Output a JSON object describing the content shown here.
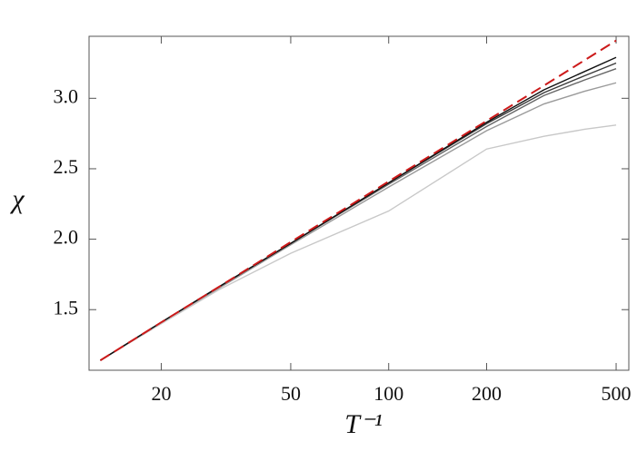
{
  "chart_data": {
    "type": "line",
    "xlabel": "T⁻¹",
    "ylabel": "χ",
    "x": [
      13,
      20,
      30,
      50,
      100,
      200,
      300,
      400,
      500
    ],
    "xscale": "log",
    "xlim": [
      12,
      547
    ],
    "xticks": [
      20,
      50,
      100,
      200,
      500
    ],
    "ylim": [
      1.07,
      3.44
    ],
    "yticks": [
      1.5,
      {
        "value": 2,
        "label": "2.0"
      },
      2.5,
      {
        "value": 3,
        "label": "3.0"
      }
    ],
    "series": [
      {
        "color": "#c8c8c8",
        "values": [
          1.14,
          1.4,
          1.64,
          1.9,
          2.2,
          2.64,
          2.73,
          2.78,
          2.81
        ]
      },
      {
        "color": "#9a9a9a",
        "values": [
          1.14,
          1.41,
          1.65,
          1.96,
          2.37,
          2.77,
          2.96,
          3.05,
          3.11
        ]
      },
      {
        "color": "#666666",
        "values": [
          1.14,
          1.41,
          1.66,
          1.97,
          2.39,
          2.8,
          3.02,
          3.13,
          3.21
        ]
      },
      {
        "color": "#3a3a3a",
        "values": [
          1.14,
          1.41,
          1.66,
          1.97,
          2.4,
          2.82,
          3.04,
          3.16,
          3.25
        ]
      },
      {
        "color": "#111111",
        "values": [
          1.14,
          1.41,
          1.66,
          1.97,
          2.4,
          2.83,
          3.06,
          3.19,
          3.29
        ]
      },
      {
        "color": "#cc1a1a",
        "dashed": true,
        "values": [
          1.14,
          1.41,
          1.66,
          1.98,
          2.41,
          2.84,
          3.09,
          3.27,
          3.41
        ]
      }
    ]
  }
}
